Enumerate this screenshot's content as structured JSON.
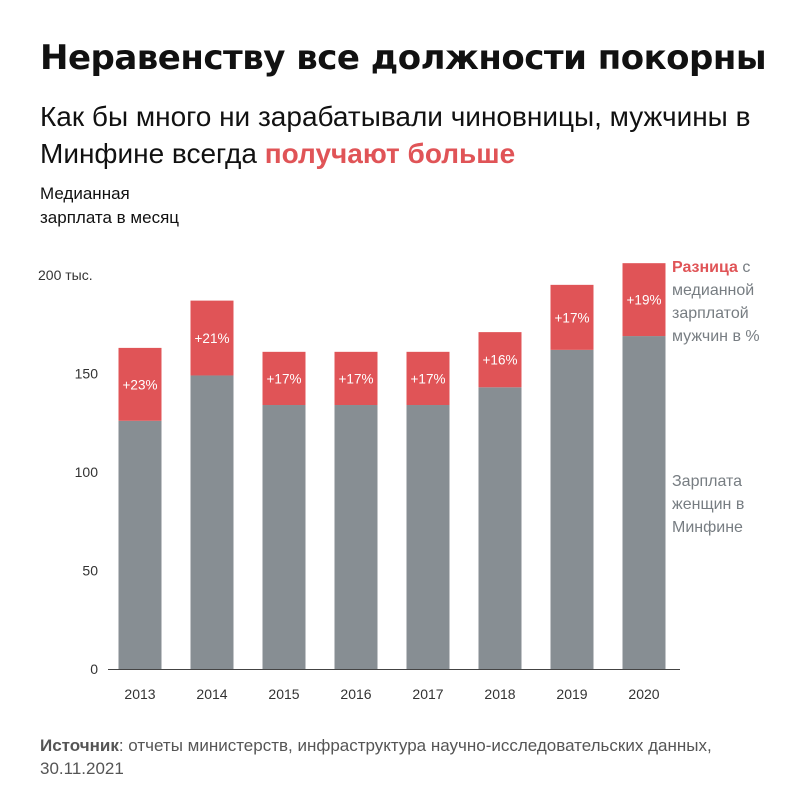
{
  "header": {
    "title": "Неравенству все должности покорны",
    "subtitle_part1": "Как бы много ни зарабатывали чиновницы, мужчины в Минфине всегда ",
    "subtitle_highlight": "получают больше"
  },
  "legend": {
    "diff_lead": "Разница",
    "diff_rest": " с медианной зарплатой мужчин в %",
    "women": "Зарплата женщин в Минфине"
  },
  "source": {
    "label": "Источник",
    "text": ": отчеты министерств, инфраструктура научно-исследовательских данных, 30.11.2021"
  },
  "colors": {
    "women": "#878e93",
    "difference": "#e05457",
    "axis": "#444444",
    "tick_text": "#333333"
  },
  "chart_data": {
    "type": "bar",
    "stacked": true,
    "ylabel": "Медианная зарплата в месяц",
    "ylim": [
      0,
      200
    ],
    "yticks": [
      0,
      50,
      100,
      150,
      200
    ],
    "ytick_labels": [
      "0",
      "50",
      "100",
      "150",
      "200 тыс."
    ],
    "categories": [
      "2013",
      "2014",
      "2015",
      "2016",
      "2017",
      "2018",
      "2019",
      "2020"
    ],
    "series": [
      {
        "name": "Зарплата женщин в Минфине",
        "values": [
          126,
          149,
          134,
          134,
          134,
          143,
          162,
          169
        ]
      },
      {
        "name": "Разница с медианной зарплатой мужчин в %",
        "values": [
          37,
          38,
          27,
          27,
          27,
          28,
          33,
          37
        ]
      }
    ],
    "data_labels": [
      "+23%",
      "+21%",
      "+17%",
      "+17%",
      "+17%",
      "+16%",
      "+17%",
      "+19%"
    ]
  }
}
